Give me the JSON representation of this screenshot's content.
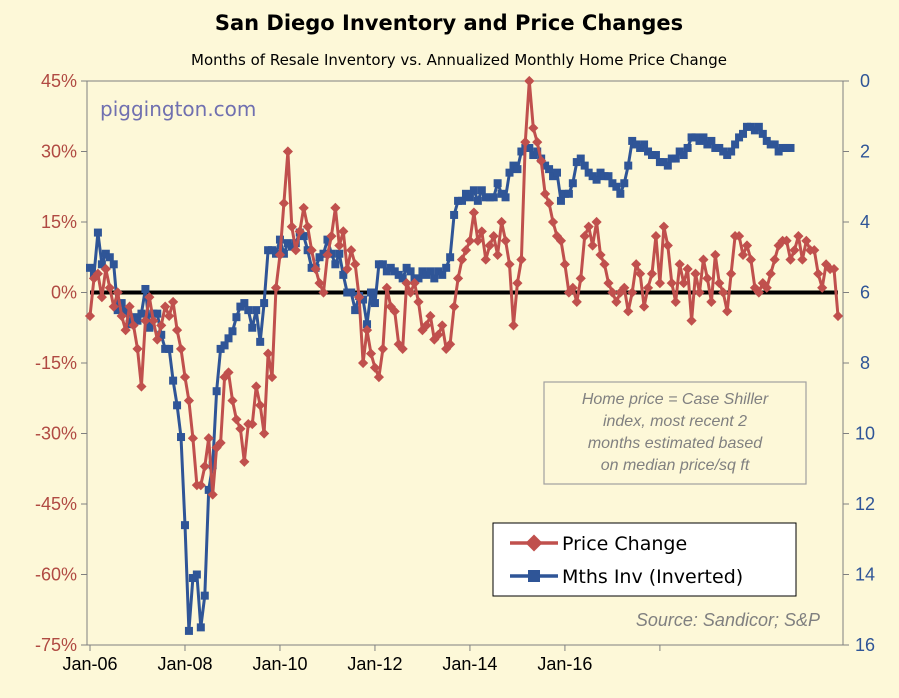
{
  "chart_data": {
    "type": "line",
    "title": "San Diego Inventory and Price Changes",
    "subtitle": "Months of Resale Inventory vs. Annualized Monthly Home Price Change",
    "watermark": "piggington.com",
    "note_lines": [
      "Home price = Case Shiller",
      "index, most recent 2",
      "months estimated based",
      "on median price/sq ft"
    ],
    "source": "Source: Sandicor; S&P",
    "x_tick_labels": [
      "Jan-06",
      "Jan-08",
      "Jan-10",
      "Jan-12",
      "Jan-14",
      "Jan-16"
    ],
    "x_start": "2006-01",
    "y_left": {
      "ticks": [
        45,
        30,
        15,
        0,
        -15,
        -30,
        -45,
        -60,
        -75
      ],
      "tick_labels": [
        "45%",
        "30%",
        "15%",
        "0%",
        "-15%",
        "-30%",
        "-45%",
        "-60%",
        "-75%"
      ],
      "range": [
        -75,
        45
      ]
    },
    "y_right": {
      "ticks": [
        0,
        2,
        4,
        6,
        8,
        10,
        12,
        14,
        16
      ],
      "tick_labels": [
        "0",
        "2",
        "4",
        "6",
        "8",
        "10",
        "12",
        "14",
        "16"
      ],
      "range": [
        0,
        16
      ],
      "inverted": true
    },
    "series": [
      {
        "name": "Price Change",
        "axis": "left",
        "color": "#c0504d",
        "marker": "diamond",
        "values": [
          -5,
          3,
          4,
          -1,
          5,
          1,
          -3,
          0,
          -5,
          -8,
          -3,
          -7,
          -12,
          -20,
          -6,
          -1,
          -6,
          -10,
          -7,
          -3,
          -5,
          -2,
          -8,
          -12,
          -18,
          -23,
          -31,
          -41,
          -41,
          -37,
          -31,
          -43,
          -33,
          -32,
          -18,
          -17,
          -23,
          -27,
          -29,
          -36,
          -28,
          -28,
          -20,
          -24,
          -30,
          -13,
          -18,
          1,
          8,
          19,
          30,
          14,
          9,
          13,
          18,
          14,
          9,
          5,
          2,
          0,
          8,
          12,
          18,
          10,
          13,
          5,
          9,
          6,
          -1,
          -15,
          -8,
          -13,
          -16,
          -18,
          -12,
          1,
          -3,
          -4,
          -11,
          -12,
          2,
          0,
          2,
          -2,
          -8,
          -7,
          -5,
          -10,
          -9,
          -7,
          -12,
          -11,
          -3,
          3,
          7,
          9,
          11,
          17,
          11,
          13,
          7,
          10,
          12,
          8,
          15,
          11,
          6,
          -7,
          2,
          7,
          32,
          45,
          35,
          32,
          28,
          21,
          19,
          15,
          12,
          11,
          6,
          0,
          1,
          -2,
          3,
          12,
          14,
          10,
          15,
          8,
          6,
          2,
          0,
          -2,
          0,
          1,
          -4,
          0,
          6,
          4,
          -3,
          1,
          4,
          12,
          2,
          14,
          10,
          2,
          -2,
          6,
          2,
          5,
          -6,
          4,
          0,
          7,
          3,
          -2,
          8,
          2,
          0,
          -4,
          4,
          12,
          12,
          8,
          10,
          7,
          1,
          0,
          2,
          1,
          4,
          7,
          10,
          11,
          11,
          7,
          9,
          12,
          7,
          11,
          9,
          9,
          4,
          1,
          6,
          5,
          5,
          -5
        ]
      },
      {
        "name": "Mths Inv (Inverted)",
        "axis": "right",
        "color": "#2f5597",
        "marker": "square",
        "values": [
          5.3,
          5.5,
          4.3,
          5.2,
          4.9,
          5.0,
          5.2,
          6.5,
          6.3,
          6.5,
          6.9,
          6.7,
          6.8,
          6.6,
          5.9,
          7.0,
          6.6,
          6.6,
          7.2,
          7.6,
          7.6,
          8.5,
          9.2,
          10.1,
          12.6,
          15.6,
          14.1,
          14.0,
          15.5,
          14.6,
          11.6,
          10.9,
          8.8,
          7.6,
          7.5,
          7.3,
          7.1,
          6.7,
          6.4,
          6.3,
          6.5,
          7.0,
          6.5,
          7.4,
          6.3,
          4.8,
          4.8,
          4.9,
          4.5,
          4.9,
          4.6,
          4.7,
          4.6,
          4.3,
          4.4,
          4.8,
          5.3,
          5.3,
          5.0,
          4.9,
          4.5,
          4.9,
          5.2,
          4.9,
          5.5,
          6.0,
          6.0,
          6.5,
          6.1,
          6.2,
          6.9,
          6.0,
          6.3,
          5.2,
          5.2,
          5.4,
          5.3,
          5.4,
          5.5,
          5.6,
          5.3,
          5.4,
          5.6,
          5.6,
          5.4,
          5.5,
          5.4,
          5.6,
          5.4,
          5.5,
          5.3,
          5.0,
          3.8,
          3.4,
          3.4,
          3.2,
          3.3,
          3.1,
          3.4,
          3.1,
          3.3,
          3.3,
          3.3,
          2.9,
          3.2,
          3.3,
          2.6,
          2.4,
          2.5,
          2.0,
          1.9,
          1.9,
          2.1,
          2.0,
          2.2,
          2.4,
          2.5,
          2.7,
          2.6,
          3.4,
          3.2,
          3.2,
          2.9,
          2.3,
          2.2,
          2.4,
          2.6,
          2.7,
          2.8,
          2.6,
          2.7,
          2.7,
          2.9,
          3.0,
          3.2,
          2.9,
          2.4,
          1.7,
          1.8,
          1.9,
          1.8,
          2.0,
          2.1,
          2.1,
          2.3,
          2.3,
          2.4,
          2.2,
          2.2,
          2.0,
          2.1,
          1.9,
          1.6,
          1.6,
          1.7,
          1.6,
          1.8,
          1.7,
          1.9,
          1.9,
          2.0,
          2.1,
          2.0,
          1.8,
          1.6,
          1.5,
          1.3,
          1.3,
          1.4,
          1.3,
          1.5,
          1.7,
          1.8,
          1.8,
          2.0,
          1.9,
          1.9,
          1.9
        ]
      }
    ],
    "reference_line": {
      "y": 0,
      "axis": "left",
      "color": "#000000"
    },
    "legend": {
      "placement": "bottom-right"
    },
    "grid": false
  }
}
